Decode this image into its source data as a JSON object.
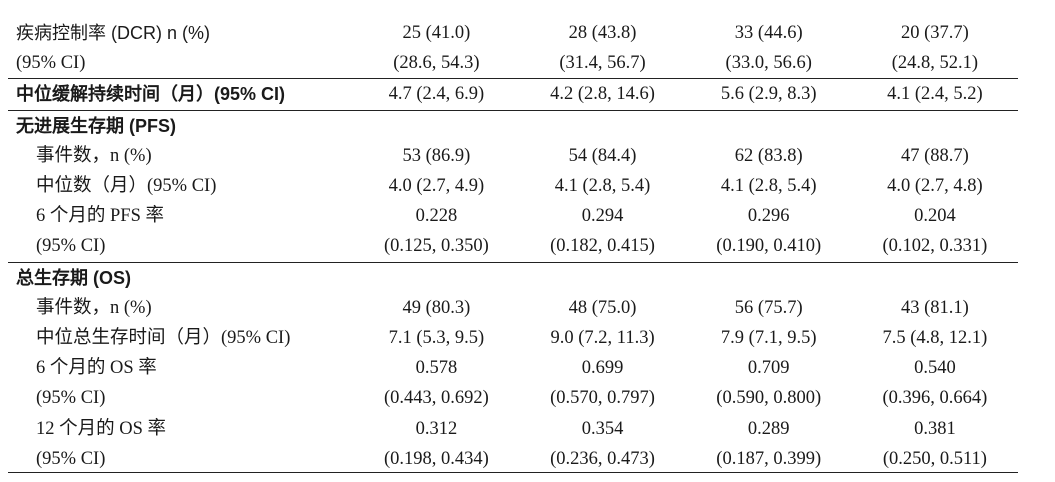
{
  "rows": [
    {
      "label": "疾病控制率 (DCR) n (%)",
      "values": [
        "25 (41.0)",
        "28 (43.8)",
        "33 (44.6)",
        "20 (37.7)"
      ]
    },
    {
      "label": "(95% CI)",
      "values": [
        "(28.6, 54.3)",
        "(31.4, 56.7)",
        "(33.0, 56.6)",
        "(24.8, 52.1)"
      ]
    },
    {
      "label": "中位缓解持续时间（月）(95% CI)",
      "values": [
        "4.7 (2.4, 6.9)",
        "4.2 (2.8, 14.6)",
        "5.6 (2.9, 8.3)",
        "4.1 (2.4, 5.2)"
      ]
    },
    {
      "label": "无进展生存期 (PFS)"
    },
    {
      "label": "事件数，n (%)",
      "values": [
        "53 (86.9)",
        "54 (84.4)",
        "62 (83.8)",
        "47 (88.7)"
      ]
    },
    {
      "label": "中位数（月）(95% CI)",
      "values": [
        "4.0 (2.7, 4.9)",
        "4.1 (2.8, 5.4)",
        "4.1 (2.8, 5.4)",
        "4.0 (2.7, 4.8)"
      ]
    },
    {
      "label": "6 个月的 PFS 率",
      "values": [
        "0.228",
        "0.294",
        "0.296",
        "0.204"
      ]
    },
    {
      "label": "(95% CI)",
      "values": [
        "(0.125, 0.350)",
        "(0.182, 0.415)",
        "(0.190, 0.410)",
        "(0.102, 0.331)"
      ]
    },
    {
      "label": "总生存期 (OS)"
    },
    {
      "label": "事件数，n (%)",
      "values": [
        "49 (80.3)",
        "48 (75.0)",
        "56 (75.7)",
        "43 (81.1)"
      ]
    },
    {
      "label": "中位总生存时间（月）(95% CI)",
      "values": [
        "7.1 (5.3, 9.5)",
        "9.0 (7.2, 11.3)",
        "7.9 (7.1, 9.5)",
        "7.5 (4.8, 12.1)"
      ]
    },
    {
      "label": "6 个月的 OS 率",
      "values": [
        "0.578",
        "0.699",
        "0.709",
        "0.540"
      ]
    },
    {
      "label": "(95% CI)",
      "values": [
        "(0.443, 0.692)",
        "(0.570, 0.797)",
        "(0.590, 0.800)",
        "(0.396, 0.664)"
      ]
    },
    {
      "label": "12 个月的 OS 率",
      "values": [
        "0.312",
        "0.354",
        "0.289",
        "0.381"
      ]
    },
    {
      "label": "(95% CI)",
      "values": [
        "(0.198, 0.434)",
        "(0.236, 0.473)",
        "(0.187, 0.399)",
        "(0.250, 0.511)"
      ]
    }
  ]
}
